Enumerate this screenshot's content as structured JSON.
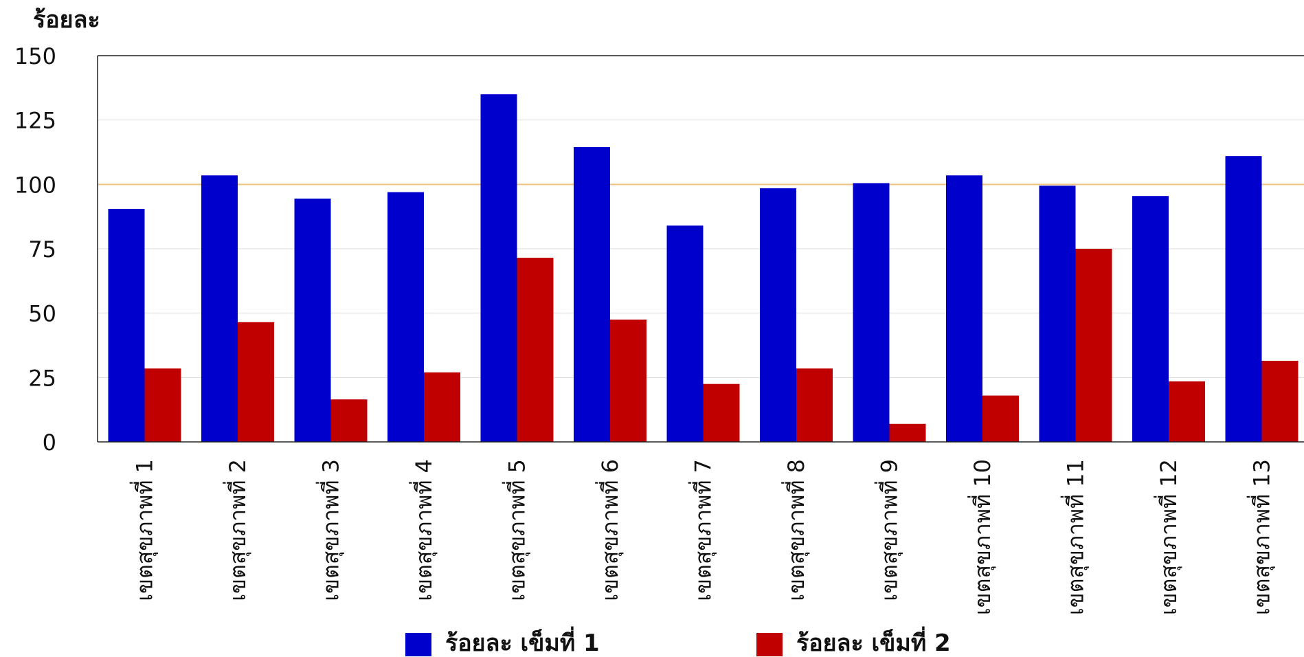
{
  "chart_data": {
    "type": "bar",
    "ylabel": "ร้อยละ",
    "ylim": [
      0,
      150
    ],
    "yticks": [
      0,
      25,
      50,
      75,
      100,
      125,
      150
    ],
    "reference_line": {
      "value": 100,
      "color": "#f0c27b"
    },
    "grid": true,
    "legend_position": "bottom",
    "categories": [
      "เขตสุขภาพที่ 1",
      "เขตสุขภาพที่ 2",
      "เขตสุขภาพที่ 3",
      "เขตสุขภาพที่ 4",
      "เขตสุขภาพที่ 5",
      "เขตสุขภาพที่ 6",
      "เขตสุขภาพที่ 7",
      "เขตสุขภาพที่ 8",
      "เขตสุขภาพที่ 9",
      "เขตสุขภาพที่ 10",
      "เขตสุขภาพที่ 11",
      "เขตสุขภาพที่ 12",
      "เขตสุขภาพที่ 13"
    ],
    "series": [
      {
        "name": "ร้อยละ เข็มที่ 1",
        "color": "#0000cc",
        "values": [
          90.5,
          103.5,
          94.5,
          97,
          135,
          114.5,
          84,
          98.5,
          100.5,
          103.5,
          99.5,
          95.5,
          111
        ]
      },
      {
        "name": "ร้อยละ เข็มที่ 2",
        "color": "#c00000",
        "values": [
          28.5,
          46.5,
          16.5,
          27,
          71.5,
          47.5,
          22.5,
          28.5,
          7,
          18,
          75,
          23.5,
          31.5
        ]
      }
    ]
  }
}
